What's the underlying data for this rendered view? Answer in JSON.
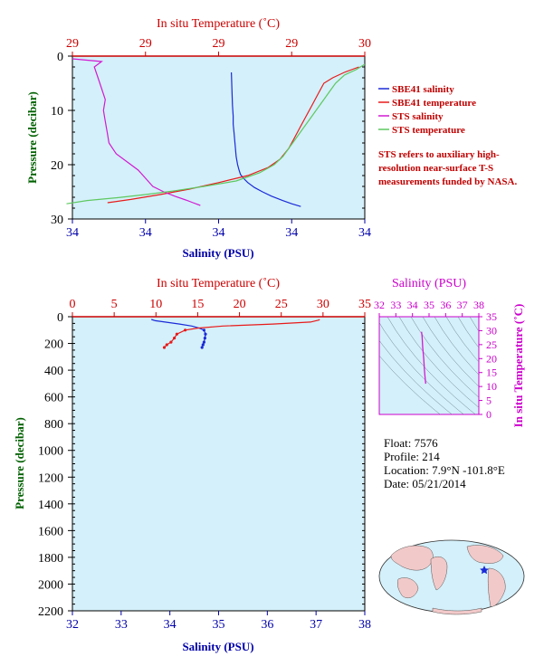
{
  "colors": {
    "salinity": "#1a2ad8",
    "temperature": "#e81a1a",
    "sts_salinity": "#d21ad2",
    "sts_temperature": "#5ec860",
    "plot_bg": "#d4f0fa",
    "axis_red": "#cc0000",
    "axis_blue": "#0000aa",
    "axis_green": "#006000",
    "axis_magenta": "#cc00cc",
    "ts_isoline": "#6a8090",
    "land": "#f2c9c9",
    "ocean": "#d4f0fa"
  },
  "icons": [
    "float-location-star-icon"
  ],
  "note": "STS refers to auxiliary high-resolution near-surface T-S measurements funded by NASA.",
  "info": {
    "float": "Float:  7576",
    "profile": "Profile:  214",
    "location": "Location:  7.9°N  -101.8°E",
    "date": "Date:  05/21/2014"
  },
  "credit": "",
  "chart_data": [
    {
      "id": "near-surface",
      "type": "line",
      "xlabel_top": "In situ Temperature (˚C)",
      "xlabel_bottom": "Salinity (PSU)",
      "ylabel": "Pressure (decibar)",
      "top_ticks": [
        "29",
        "29",
        "29",
        "29",
        "30"
      ],
      "bottom_ticks": [
        "34",
        "34",
        "34",
        "34",
        "34"
      ],
      "y_ticks": [
        "0",
        "10",
        "20",
        "30"
      ],
      "xlim_temperature": [
        29.0,
        30.0
      ],
      "xlim_salinity": [
        34.0,
        34.8
      ],
      "ylim": [
        0,
        30
      ],
      "legend_placement": "right",
      "grid": false,
      "series": [
        {
          "name": "SBE41 salinity",
          "color_key": "salinity",
          "x": [
            34.435,
            34.436,
            34.437,
            34.438,
            34.44,
            34.44,
            34.442,
            34.444,
            34.446,
            34.448,
            34.452,
            34.456,
            34.46,
            34.468,
            34.48,
            34.498,
            34.52,
            34.545,
            34.575,
            34.6,
            34.625
          ],
          "y": [
            3,
            5,
            7,
            9,
            11,
            12.5,
            14,
            15.5,
            17,
            18.5,
            20,
            21,
            21.8,
            22.5,
            23.3,
            24.2,
            25,
            25.8,
            26.6,
            27.2,
            27.7
          ]
        },
        {
          "name": "SBE41 temperature",
          "color_key": "temperature",
          "x": [
            29.98,
            29.93,
            29.89,
            29.86,
            29.84,
            29.82,
            29.8,
            29.78,
            29.76,
            29.74,
            29.71,
            29.67,
            29.6,
            29.5,
            29.4,
            29.3,
            29.2,
            29.12
          ],
          "y": [
            2,
            3,
            4,
            5,
            7,
            9,
            11,
            13,
            15,
            17,
            19,
            20.5,
            22,
            23.3,
            24.5,
            25.5,
            26.4,
            27
          ]
        },
        {
          "name": "STS salinity",
          "color_key": "sts_salinity",
          "x": [
            34.0,
            34.08,
            34.06,
            34.07,
            34.08,
            34.09,
            34.085,
            34.09,
            34.095,
            34.1,
            34.12,
            34.15,
            34.18,
            34.2,
            34.22,
            34.25,
            34.28,
            34.31,
            34.33,
            34.35
          ],
          "y": [
            0.5,
            1,
            2,
            4,
            6,
            8,
            10,
            12,
            14,
            16,
            18,
            19.5,
            21,
            22.5,
            24,
            25,
            25.8,
            26.5,
            27,
            27.5
          ]
        },
        {
          "name": "STS temperature",
          "color_key": "sts_temperature",
          "x": [
            30.0,
            29.97,
            29.93,
            29.9,
            29.88,
            29.86,
            29.84,
            29.82,
            29.8,
            29.78,
            29.76,
            29.74,
            29.72,
            29.69,
            29.64,
            29.56,
            29.45,
            29.35,
            29.25,
            29.15,
            29.05,
            28.98
          ],
          "y": [
            1.5,
            2.5,
            3.5,
            5,
            6.5,
            8,
            9.5,
            11,
            12.5,
            14,
            15.5,
            17,
            18.5,
            20,
            21.5,
            23,
            24,
            24.8,
            25.5,
            26.1,
            26.6,
            27.2
          ]
        }
      ]
    },
    {
      "id": "full-profile",
      "type": "line",
      "xlabel_top": "In situ Temperature (˚C)",
      "xlabel_bottom": "Salinity (PSU)",
      "ylabel": "Pressure (decibar)",
      "top_ticks": [
        "0",
        "5",
        "10",
        "15",
        "20",
        "25",
        "30",
        "35"
      ],
      "bottom_ticks": [
        "32",
        "33",
        "34",
        "35",
        "36",
        "37",
        "38"
      ],
      "y_ticks": [
        "0",
        "200",
        "400",
        "600",
        "800",
        "1000",
        "1200",
        "1400",
        "1600",
        "1800",
        "2000",
        "2200"
      ],
      "xlim_temperature": [
        0,
        35
      ],
      "xlim_salinity": [
        32,
        38
      ],
      "ylim": [
        0,
        2200
      ],
      "grid": false,
      "series": [
        {
          "name": "salinity",
          "color_key": "salinity",
          "x": [
            33.62,
            33.7,
            33.9,
            34.2,
            34.45,
            34.6,
            34.7,
            34.73,
            34.72,
            34.7,
            34.68,
            34.66
          ],
          "y": [
            20,
            30,
            40,
            55,
            70,
            85,
            100,
            130,
            160,
            190,
            210,
            230
          ]
        },
        {
          "name": "temperature",
          "color_key": "temperature",
          "x": [
            29.6,
            29.5,
            28.5,
            24,
            18,
            15,
            13.5,
            12.5,
            12.2,
            11.8,
            11.3,
            11.0
          ],
          "y": [
            20,
            25,
            40,
            55,
            70,
            85,
            100,
            130,
            160,
            190,
            210,
            230
          ]
        }
      ]
    },
    {
      "id": "ts-diagram",
      "type": "line",
      "xlabel_top": "Salinity (PSU)",
      "ylabel_right": "In situ Temperature (˚C)",
      "top_ticks": [
        "32",
        "33",
        "34",
        "35",
        "36",
        "37",
        "38"
      ],
      "right_ticks": [
        "0",
        "5",
        "10",
        "15",
        "20",
        "25",
        "30",
        "35"
      ],
      "xlim": [
        32,
        38
      ],
      "ylim": [
        0,
        35
      ],
      "series": [
        {
          "name": "T-S",
          "color_key": "sts_salinity",
          "x": [
            34.55,
            34.58,
            34.62,
            34.68,
            34.72,
            34.75,
            34.78,
            34.8
          ],
          "y": [
            29.6,
            28.0,
            24.0,
            20.0,
            16.0,
            14.0,
            12.0,
            11.0
          ]
        }
      ]
    }
  ]
}
